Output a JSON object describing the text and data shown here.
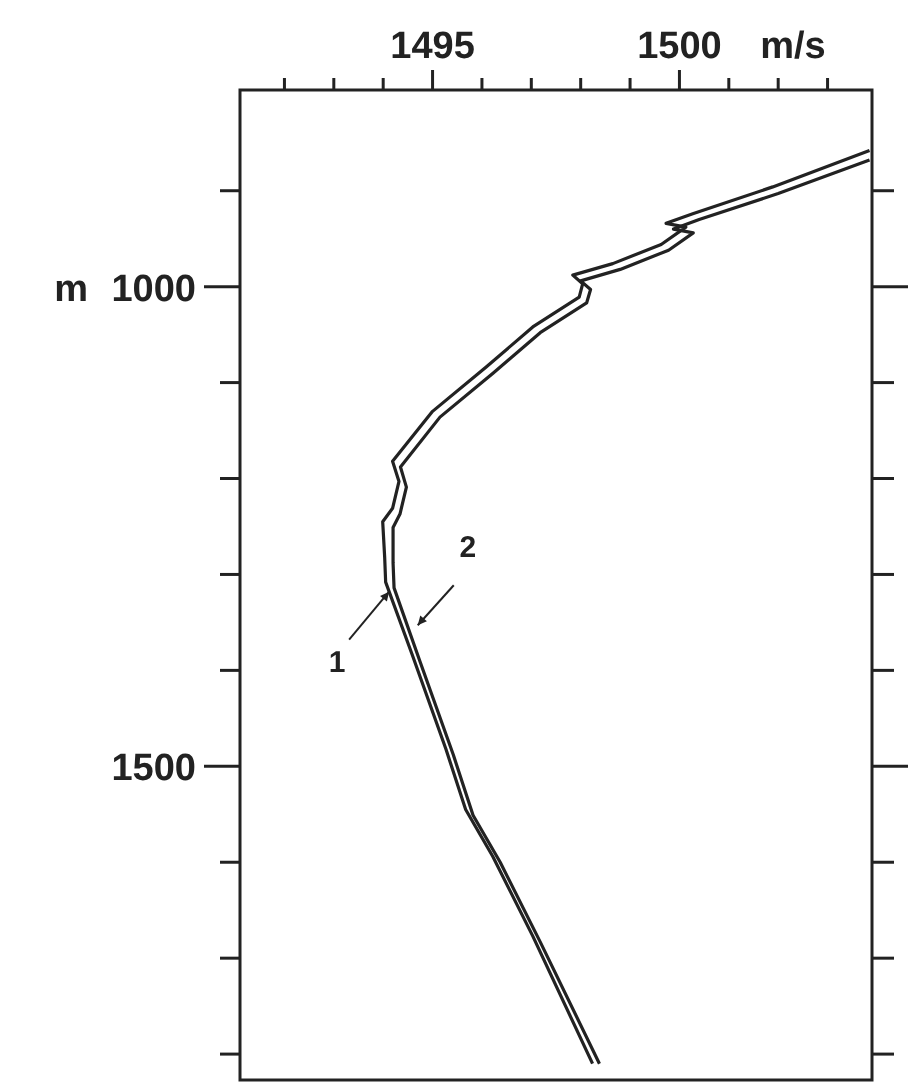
{
  "chart_data": {
    "type": "line",
    "xlabel": "m/s",
    "ylabel": "m",
    "xlim": [
      1491.1,
      1503.9
    ],
    "ylim": [
      1827,
      795
    ],
    "xticks": [
      {
        "value": 1492,
        "label": null
      },
      {
        "value": 1493,
        "label": null
      },
      {
        "value": 1494,
        "label": null
      },
      1495,
      {
        "value": 1496,
        "label": null
      },
      {
        "value": 1497,
        "label": null
      },
      {
        "value": 1498,
        "label": null
      },
      {
        "value": 1499,
        "label": null
      },
      1500,
      {
        "value": 1501,
        "label": null
      },
      {
        "value": 1502,
        "label": null
      },
      {
        "value": 1503,
        "label": null
      }
    ],
    "yticks": [
      {
        "value": 900,
        "label": null
      },
      1000,
      {
        "value": 1100,
        "label": null
      },
      {
        "value": 1200,
        "label": null
      },
      {
        "value": 1300,
        "label": null
      },
      {
        "value": 1400,
        "label": null
      },
      1500,
      {
        "value": 1600,
        "label": null
      },
      {
        "value": 1700,
        "label": null
      },
      {
        "value": 1800,
        "label": null
      }
    ],
    "series": [
      {
        "color": "#222222",
        "x": [
          1503.85,
          1501.89,
          1500.27,
          1499.73,
          1500.13,
          1499.63,
          1498.65,
          1497.84,
          1498.04,
          1497.97,
          1497.03,
          1496.08,
          1495.0,
          1494.19,
          1494.32,
          1494.19,
          1493.99,
          1494.03,
          1494.05,
          1494.59,
          1495.27,
          1495.67,
          1496.22,
          1497.03,
          1498.24
        ],
        "values": [
          858,
          896,
          924,
          934,
          938,
          956,
          976,
          988,
          997,
          1011,
          1042,
          1084,
          1130,
          1182,
          1203,
          1231,
          1245,
          1282,
          1308,
          1384,
          1482,
          1545,
          1594,
          1677,
          1810
        ]
      },
      {
        "color": "#222222",
        "x": [
          1503.85,
          1502.0,
          1500.4,
          1499.88,
          1500.28,
          1499.78,
          1498.8,
          1498.0,
          1498.2,
          1498.12,
          1497.18,
          1496.23,
          1495.15,
          1494.35,
          1494.47,
          1494.34,
          1494.2,
          1494.2,
          1494.22,
          1494.74,
          1495.42,
          1495.82,
          1496.37,
          1497.18,
          1498.38
        ],
        "values": [
          868,
          903,
          930,
          940,
          944,
          962,
          982,
          994,
          1003,
          1017,
          1048,
          1090,
          1136,
          1188,
          1209,
          1237,
          1251,
          1288,
          1314,
          1390,
          1488,
          1551,
          1600,
          1683,
          1810
        ]
      }
    ],
    "annotations": [
      {
        "text": "1",
        "x": 1494.12,
        "y": 1318
      },
      {
        "text": "2",
        "x": 1494.7,
        "y": 1353
      }
    ],
    "grid": false,
    "line_style": "solid",
    "tick_labels": "xy"
  }
}
